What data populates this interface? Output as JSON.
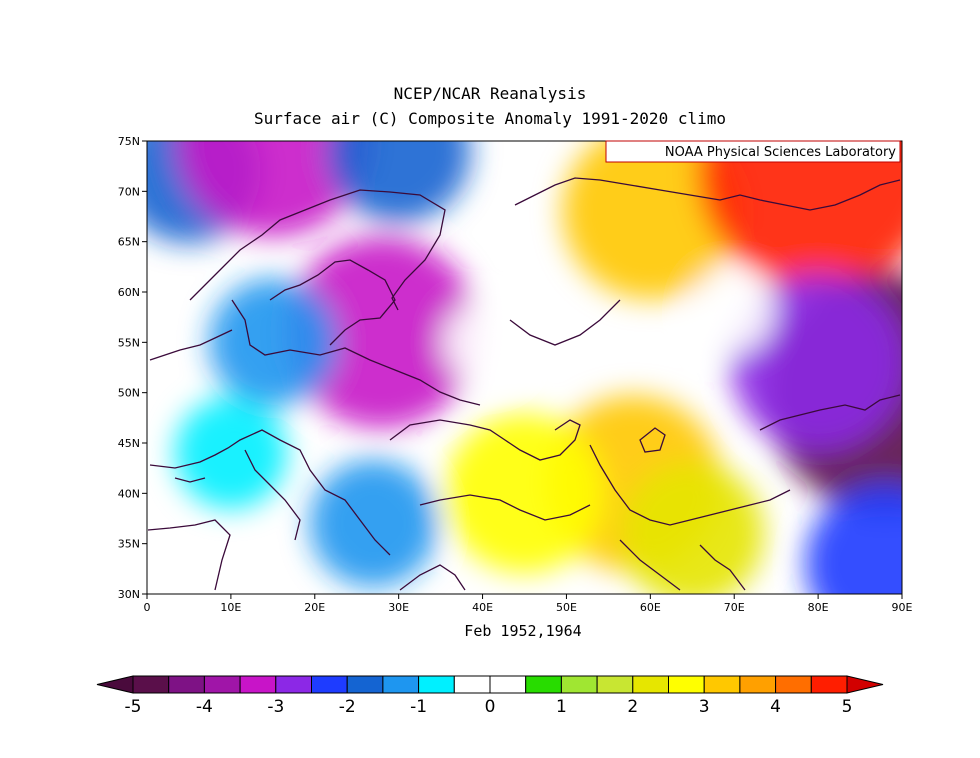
{
  "title_line1": "NCEP/NCAR Reanalysis",
  "title_line2": "Surface air (C) Composite Anomaly 1991-2020 climo",
  "credit": "NOAA Physical Sciences Laboratory",
  "xlabel": "Feb 1952,1964",
  "map": {
    "lon_range": [
      0,
      90
    ],
    "lat_range": [
      30,
      75
    ],
    "lon_ticks": [
      "0",
      "10E",
      "20E",
      "30E",
      "40E",
      "50E",
      "60E",
      "70E",
      "80E",
      "90E"
    ],
    "lat_ticks": [
      "30N",
      "35N",
      "40N",
      "45N",
      "50N",
      "55N",
      "60N",
      "65N",
      "70N",
      "75N"
    ],
    "anomaly_field": [
      {
        "lon": 5,
        "lat": 72,
        "value": -2.0
      },
      {
        "lon": 15,
        "lat": 75,
        "value": -3.5
      },
      {
        "lon": 30,
        "lat": 74,
        "value": -2.0
      },
      {
        "lon": 28,
        "lat": 56,
        "value": -3.5
      },
      {
        "lon": 15,
        "lat": 55,
        "value": -1.5
      },
      {
        "lon": 10,
        "lat": 44,
        "value": -1.0
      },
      {
        "lon": 27,
        "lat": 37,
        "value": -1.5
      },
      {
        "lon": 60,
        "lat": 68,
        "value": 3.0
      },
      {
        "lon": 80,
        "lat": 72,
        "value": 5.0
      },
      {
        "lon": 58,
        "lat": 41,
        "value": 3.0
      },
      {
        "lon": 45,
        "lat": 40,
        "value": 2.5
      },
      {
        "lon": 65,
        "lat": 36,
        "value": 2.0
      },
      {
        "lon": 88,
        "lat": 50,
        "value": -5.0
      },
      {
        "lon": 80,
        "lat": 53,
        "value": -3.0
      },
      {
        "lon": 88,
        "lat": 33,
        "value": -2.5
      },
      {
        "lon": 40,
        "lat": 55,
        "value": 0.0
      },
      {
        "lon": 70,
        "lat": 58,
        "value": 0.0
      }
    ]
  },
  "colorbar": {
    "labels": [
      "-5",
      "-4",
      "-3",
      "-2",
      "-1",
      "0",
      "1",
      "2",
      "3",
      "4",
      "5"
    ],
    "colors": [
      "#5a0f4a",
      "#7e1285",
      "#a015a8",
      "#c814c8",
      "#8c28e6",
      "#1e3cff",
      "#1464d2",
      "#1e96f0",
      "#00f0ff",
      "#ffffff",
      "#ffffff",
      "#28dc00",
      "#a0e632",
      "#c8e632",
      "#e6e600",
      "#ffff00",
      "#ffc800",
      "#ffa000",
      "#ff6e00",
      "#ff1e00"
    ],
    "under_color": "#4a0a3c",
    "over_color": "#d20000"
  }
}
